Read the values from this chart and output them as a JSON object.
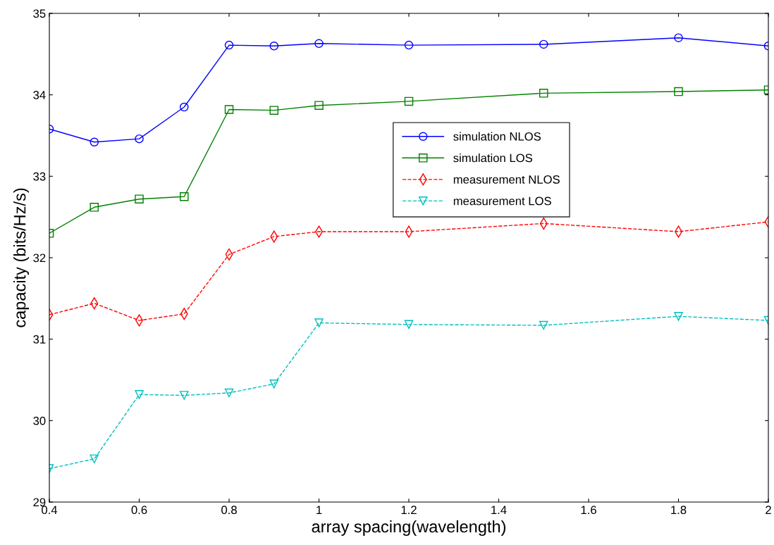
{
  "chart_data": {
    "type": "line",
    "xlabel": "array spacing(wavelength)",
    "ylabel": "capacity (bits/Hz/s)",
    "x": [
      0.4,
      0.5,
      0.6,
      0.7,
      0.8,
      0.9,
      1.0,
      1.2,
      1.5,
      1.8,
      2.0
    ],
    "series": [
      {
        "name": "simulation NLOS",
        "color": "#0000ff",
        "marker": "circle",
        "line_style": "solid",
        "values": [
          33.58,
          33.42,
          33.46,
          33.85,
          34.61,
          34.6,
          34.63,
          34.61,
          34.62,
          34.7,
          34.6
        ]
      },
      {
        "name": "simulation LOS",
        "color": "#008000",
        "marker": "square",
        "line_style": "solid",
        "values": [
          32.3,
          32.62,
          32.72,
          32.75,
          33.82,
          33.81,
          33.87,
          33.92,
          34.02,
          34.04,
          34.06
        ]
      },
      {
        "name": "measurement NLOS",
        "color": "#ff0000",
        "marker": "diamond",
        "line_style": "dashed",
        "values": [
          31.3,
          31.44,
          31.23,
          31.31,
          32.04,
          32.26,
          32.32,
          32.32,
          32.42,
          32.32,
          32.44
        ]
      },
      {
        "name": "measurement LOS",
        "color": "#00bfbf",
        "marker": "triangle",
        "line_style": "dashed",
        "values": [
          29.41,
          29.53,
          30.32,
          30.31,
          30.34,
          30.45,
          31.2,
          31.18,
          31.17,
          31.28,
          31.23
        ]
      }
    ],
    "xlim": [
      0.4,
      2
    ],
    "xticks": [
      0.4,
      0.6,
      0.8,
      1,
      1.2,
      1.4,
      1.6,
      1.8,
      2
    ],
    "ylim": [
      29,
      35
    ],
    "yticks": [
      29,
      30,
      31,
      32,
      33,
      34,
      35
    ],
    "grid": false,
    "legend": "right"
  }
}
